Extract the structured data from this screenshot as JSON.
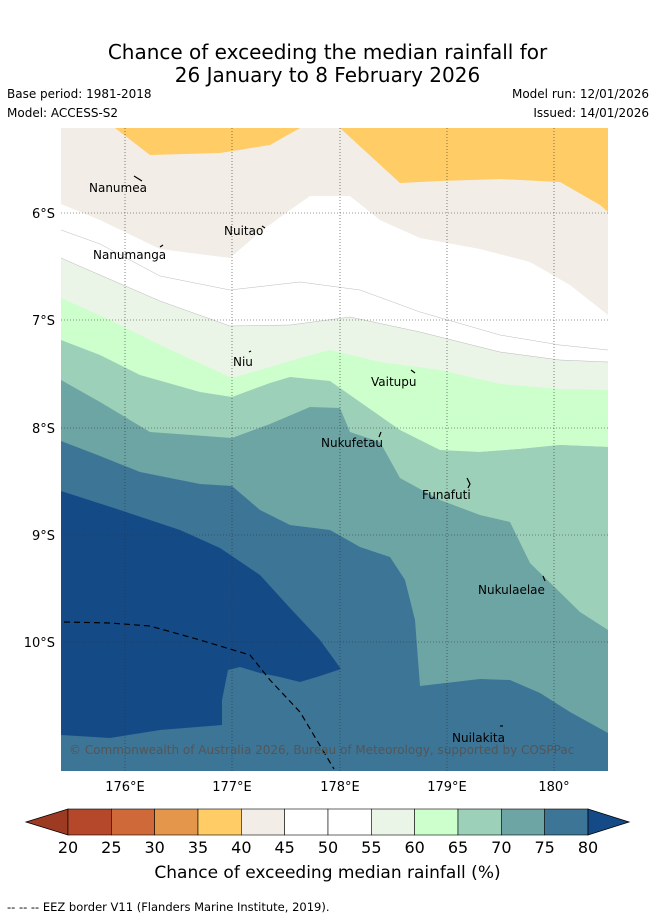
{
  "title": {
    "line1": "Chance of exceeding the median rainfall for",
    "line2": "26 January to 8 February 2026"
  },
  "meta": {
    "base_period": "Base period: 1981-2018",
    "model": "Model: ACCESS-S2",
    "model_run": "Model run: 12/01/2026",
    "issued": "Issued: 14/01/2026"
  },
  "map": {
    "lat_labels": [
      "6°S",
      "7°S",
      "8°S",
      "9°S",
      "10°S"
    ],
    "lon_labels": [
      "176°E",
      "177°E",
      "178°E",
      "179°E",
      "180°"
    ],
    "islands": [
      "Nanumea",
      "Nuitao",
      "Nanumanga",
      "Niu",
      "Vaitupu",
      "Nukufetau",
      "Funafuti",
      "Nukulaelae",
      "Nuilakita"
    ],
    "copyright": "© Commonwealth of Australia 2026, Bureau of Meteorology, supported by COSPPac"
  },
  "colorbar": {
    "ticks": [
      "20",
      "25",
      "30",
      "35",
      "40",
      "45",
      "50",
      "55",
      "60",
      "65",
      "70",
      "75",
      "80"
    ],
    "colors": [
      "#b5482a",
      "#d0693a",
      "#e4974b",
      "#ffcc66",
      "#f2ede6",
      "#ffffff",
      "#ffffff",
      "#eaf5e8",
      "#ccffcc",
      "#9dd0b8",
      "#6da5a5",
      "#3d7596",
      "#144b86"
    ],
    "low_color": "#9c3a22",
    "high_color": "#144b86",
    "label": "Chance of exceeding median rainfall (%)"
  },
  "footer": "-- -- -- EEZ border V11 (Flanders Marine Institute, 2019)."
}
